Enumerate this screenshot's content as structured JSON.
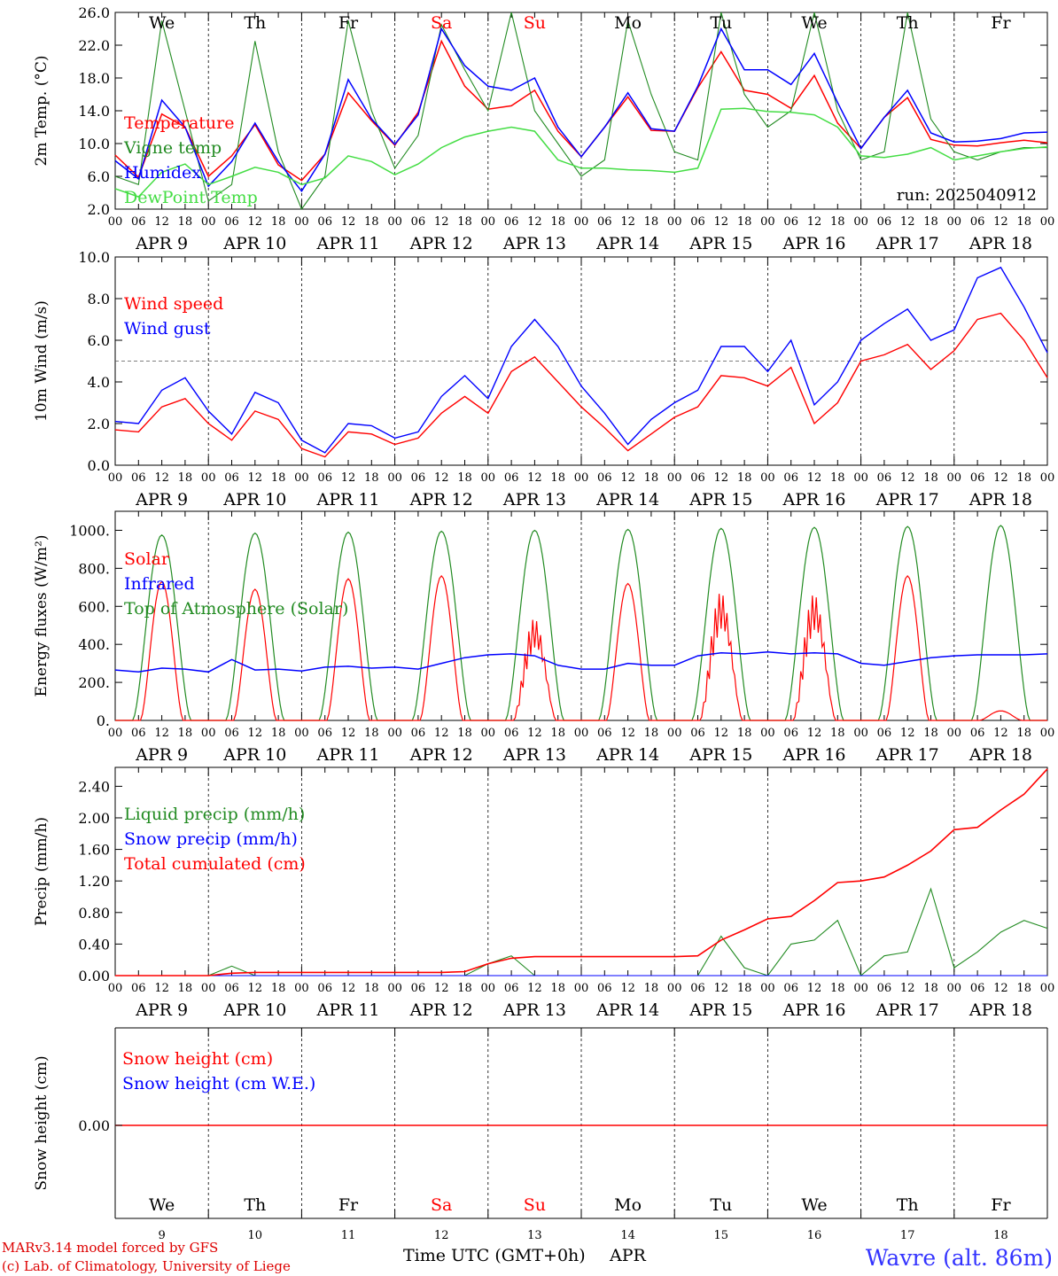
{
  "run_label": "run: 2025040912",
  "footer": {
    "model": "MARv3.14 model forced by GFS",
    "credit": "(c) Lab. of Climatology, University of Liege",
    "xlabel": "Time UTC (GMT+0h)",
    "month": "APR",
    "location": "Wavre (alt. 86m)"
  },
  "days": [
    {
      "weekday": "We",
      "date": "APR  9",
      "num": "9",
      "weekend": false
    },
    {
      "weekday": "Th",
      "date": "APR 10",
      "num": "10",
      "weekend": false
    },
    {
      "weekday": "Fr",
      "date": "APR 11",
      "num": "11",
      "weekend": false
    },
    {
      "weekday": "Sa",
      "date": "APR 12",
      "num": "12",
      "weekend": true
    },
    {
      "weekday": "Su",
      "date": "APR 13",
      "num": "13",
      "weekend": true
    },
    {
      "weekday": "Mo",
      "date": "APR 14",
      "num": "14",
      "weekend": false
    },
    {
      "weekday": "Tu",
      "date": "APR 15",
      "num": "15",
      "weekend": false
    },
    {
      "weekday": "We",
      "date": "APR 16",
      "num": "16",
      "weekend": false
    },
    {
      "weekday": "Th",
      "date": "APR 17",
      "num": "17",
      "weekend": false
    },
    {
      "weekday": "Fr",
      "date": "APR 18",
      "num": "18",
      "weekend": false
    }
  ],
  "hour_ticks": [
    "00",
    "06",
    "12",
    "18"
  ],
  "colors": {
    "red": "#ff0000",
    "green": "#228b22",
    "blue": "#0000ff",
    "lightgreen": "#44dd44",
    "darkred": "#dd0000",
    "location": "#3333ff"
  },
  "chart_data": [
    {
      "type": "line",
      "ylabel": "2m Temp. (°C)",
      "ylim": [
        2.0,
        26.0
      ],
      "yticks": [
        "2.0",
        "6.0",
        "10.0",
        "14.0",
        "18.0",
        "22.0",
        "26.0"
      ],
      "x_hours": [
        0,
        6,
        12,
        18,
        24,
        30,
        36,
        42,
        48,
        54,
        60,
        66,
        72,
        78,
        84,
        90,
        96,
        102,
        108,
        114,
        120,
        126,
        132,
        138,
        144,
        150,
        156,
        162,
        168,
        174,
        180,
        186,
        192,
        198,
        204,
        210,
        216,
        222,
        228,
        234,
        240
      ],
      "series": [
        {
          "name": "Temperature",
          "color": "red",
          "values": [
            8.6,
            5.9,
            13.6,
            12.0,
            6.0,
            8.5,
            12.3,
            7.4,
            5.5,
            8.7,
            16.2,
            12.8,
            9.8,
            13.8,
            22.5,
            17.0,
            14.2,
            14.6,
            16.5,
            11.5,
            8.4,
            12.0,
            15.7,
            11.6,
            11.5,
            16.8,
            21.2,
            16.5,
            16.0,
            14.3,
            18.3,
            12.5,
            9.4,
            13.2,
            15.6,
            10.5,
            9.8,
            9.7,
            10.1,
            10.4,
            10.1
          ]
        },
        {
          "name": "Vigne temp",
          "color": "green",
          "values": [
            6.0,
            5.0,
            25.0,
            14.0,
            3.0,
            5.0,
            22.5,
            9.0,
            2.0,
            6.0,
            25.0,
            14.0,
            7.0,
            11.0,
            24.5,
            19.0,
            14.0,
            26.0,
            14.0,
            10.0,
            6.0,
            8.0,
            25.0,
            16.0,
            9.0,
            8.0,
            26.0,
            16.0,
            12.0,
            14.0,
            26.0,
            14.0,
            8.0,
            9.0,
            26.0,
            13.0,
            9.0,
            8.0,
            9.0,
            9.5,
            9.5
          ]
        },
        {
          "name": "Humidex",
          "color": "blue",
          "values": [
            7.9,
            5.7,
            15.3,
            12.0,
            4.8,
            7.8,
            12.5,
            7.8,
            4.2,
            8.7,
            17.8,
            13.0,
            9.9,
            13.5,
            24.0,
            19.5,
            17.0,
            16.5,
            18.0,
            12.0,
            8.4,
            12.0,
            16.2,
            11.8,
            11.5,
            17.0,
            24.0,
            19.0,
            19.0,
            17.2,
            21.0,
            15.0,
            9.4,
            13.2,
            16.5,
            11.3,
            10.2,
            10.3,
            10.6,
            11.3,
            11.4
          ]
        },
        {
          "name": "DewPoint Temp",
          "color": "lightgreen",
          "values": [
            4.5,
            3.5,
            6.5,
            7.5,
            5.0,
            6.0,
            7.1,
            6.5,
            5.0,
            5.8,
            8.5,
            7.8,
            6.2,
            7.5,
            9.5,
            10.8,
            11.5,
            12.0,
            11.5,
            8.0,
            7.0,
            7.0,
            6.8,
            6.7,
            6.5,
            7.0,
            14.2,
            14.3,
            13.9,
            13.8,
            13.5,
            12.0,
            8.5,
            8.3,
            8.7,
            9.5,
            8.0,
            8.5,
            9.0,
            9.4,
            9.6
          ]
        }
      ]
    },
    {
      "type": "line",
      "ylabel": "10m Wind (m/s)",
      "ylim": [
        0.0,
        10.0
      ],
      "yticks": [
        "0.0",
        "2.0",
        "4.0",
        "6.0",
        "8.0",
        "10.0"
      ],
      "reference_line": 5.0,
      "x_hours": [
        0,
        6,
        12,
        18,
        24,
        30,
        36,
        42,
        48,
        54,
        60,
        66,
        72,
        78,
        84,
        90,
        96,
        102,
        108,
        114,
        120,
        126,
        132,
        138,
        144,
        150,
        156,
        162,
        168,
        174,
        180,
        186,
        192,
        198,
        204,
        210,
        216,
        222,
        228,
        234,
        240
      ],
      "series": [
        {
          "name": "Wind speed",
          "color": "red",
          "values": [
            1.7,
            1.6,
            2.8,
            3.2,
            2.0,
            1.2,
            2.6,
            2.2,
            0.8,
            0.4,
            1.6,
            1.5,
            1.0,
            1.3,
            2.5,
            3.3,
            2.5,
            4.5,
            5.2,
            4.0,
            2.8,
            1.8,
            0.7,
            1.5,
            2.3,
            2.8,
            4.3,
            4.2,
            3.8,
            4.7,
            2.0,
            3.0,
            5.0,
            5.3,
            5.8,
            4.6,
            5.5,
            7.0,
            7.3,
            6.0,
            4.2
          ]
        },
        {
          "name": "Wind gust",
          "color": "blue",
          "values": [
            2.1,
            2.0,
            3.6,
            4.2,
            2.6,
            1.5,
            3.5,
            3.0,
            1.2,
            0.6,
            2.0,
            1.9,
            1.3,
            1.6,
            3.3,
            4.3,
            3.2,
            5.7,
            7.0,
            5.7,
            3.8,
            2.5,
            1.0,
            2.2,
            3.0,
            3.6,
            5.7,
            5.7,
            4.5,
            6.0,
            2.9,
            4.0,
            6.0,
            6.8,
            7.5,
            6.0,
            6.5,
            9.0,
            9.5,
            7.6,
            5.4
          ]
        }
      ]
    },
    {
      "type": "line",
      "ylabel": "Energy fluxes (W/m²)",
      "ylim": [
        0.0,
        1100.0
      ],
      "yticks": [
        "0.",
        "200.",
        "400.",
        "600.",
        "800.",
        "1000."
      ],
      "x_hours": [
        0,
        6,
        12,
        18,
        24,
        30,
        36,
        42,
        48,
        54,
        60,
        66,
        72,
        78,
        84,
        90,
        96,
        102,
        108,
        114,
        120,
        126,
        132,
        138,
        144,
        150,
        156,
        162,
        168,
        174,
        180,
        186,
        192,
        198,
        204,
        210,
        216,
        222,
        228,
        234,
        240
      ],
      "series": [
        {
          "name": "Solar",
          "color": "red",
          "peaks": [
            730,
            690,
            745,
            760,
            580,
            720,
            730,
            720,
            760,
            50
          ]
        },
        {
          "name": "Infrared",
          "color": "blue",
          "values": [
            265,
            255,
            275,
            270,
            255,
            320,
            265,
            270,
            260,
            280,
            285,
            275,
            280,
            270,
            300,
            330,
            345,
            350,
            340,
            290,
            270,
            270,
            300,
            290,
            290,
            340,
            355,
            350,
            360,
            350,
            355,
            350,
            300,
            290,
            310,
            330,
            340,
            345,
            345,
            345,
            350
          ]
        },
        {
          "name": "Top of Atmosphere (Solar)",
          "color": "green",
          "peaks": [
            975,
            985,
            990,
            995,
            1000,
            1005,
            1010,
            1015,
            1020,
            1025
          ]
        }
      ]
    },
    {
      "type": "line",
      "ylabel": "Precip (mm/h)",
      "ylim": [
        0.0,
        2.64
      ],
      "yticks": [
        "0.00",
        "0.40",
        "0.80",
        "1.20",
        "1.60",
        "2.00",
        "2.40"
      ],
      "x_hours": [
        0,
        6,
        12,
        18,
        24,
        30,
        36,
        42,
        48,
        54,
        60,
        66,
        72,
        78,
        84,
        90,
        96,
        102,
        108,
        114,
        120,
        126,
        132,
        138,
        144,
        150,
        156,
        162,
        168,
        174,
        180,
        186,
        192,
        198,
        204,
        210,
        216,
        222,
        228,
        234,
        240
      ],
      "series": [
        {
          "name": "Liquid precip (mm/h)",
          "color": "green",
          "values": [
            0,
            0,
            0,
            0,
            0,
            0.12,
            0,
            0,
            0,
            0,
            0,
            0,
            0,
            0,
            0,
            0,
            0.15,
            0.25,
            0,
            0,
            0,
            0,
            0,
            0,
            0,
            0,
            0.5,
            0.1,
            0,
            0.4,
            0.45,
            0.7,
            0,
            0.25,
            0.3,
            1.1,
            0.1,
            0.3,
            0.55,
            0.7,
            0.6
          ]
        },
        {
          "name": "Snow precip (mm/h)",
          "color": "blue",
          "values": [
            0,
            0,
            0,
            0,
            0,
            0,
            0,
            0,
            0,
            0,
            0,
            0,
            0,
            0,
            0,
            0,
            0,
            0,
            0,
            0,
            0,
            0,
            0,
            0,
            0,
            0,
            0,
            0,
            0,
            0,
            0,
            0,
            0,
            0,
            0,
            0,
            0,
            0,
            0,
            0,
            0
          ]
        },
        {
          "name": "Total cumulated (cm)",
          "color": "red",
          "values": [
            0,
            0,
            0,
            0,
            0,
            0.03,
            0.04,
            0.04,
            0.04,
            0.04,
            0.04,
            0.04,
            0.04,
            0.04,
            0.04,
            0.05,
            0.15,
            0.22,
            0.24,
            0.24,
            0.24,
            0.24,
            0.24,
            0.24,
            0.24,
            0.25,
            0.45,
            0.58,
            0.72,
            0.75,
            0.95,
            1.18,
            1.2,
            1.25,
            1.4,
            1.58,
            1.85,
            1.88,
            2.1,
            2.3,
            2.62
          ]
        }
      ]
    },
    {
      "type": "line",
      "ylabel": "Snow height (cm)",
      "yticks": [
        "0.00"
      ],
      "series": [
        {
          "name": "Snow height (cm)",
          "color": "red",
          "values": [
            0,
            0
          ]
        },
        {
          "name": "Snow height (cm W.E.)",
          "color": "blue",
          "values": [
            0,
            0
          ]
        }
      ]
    }
  ]
}
